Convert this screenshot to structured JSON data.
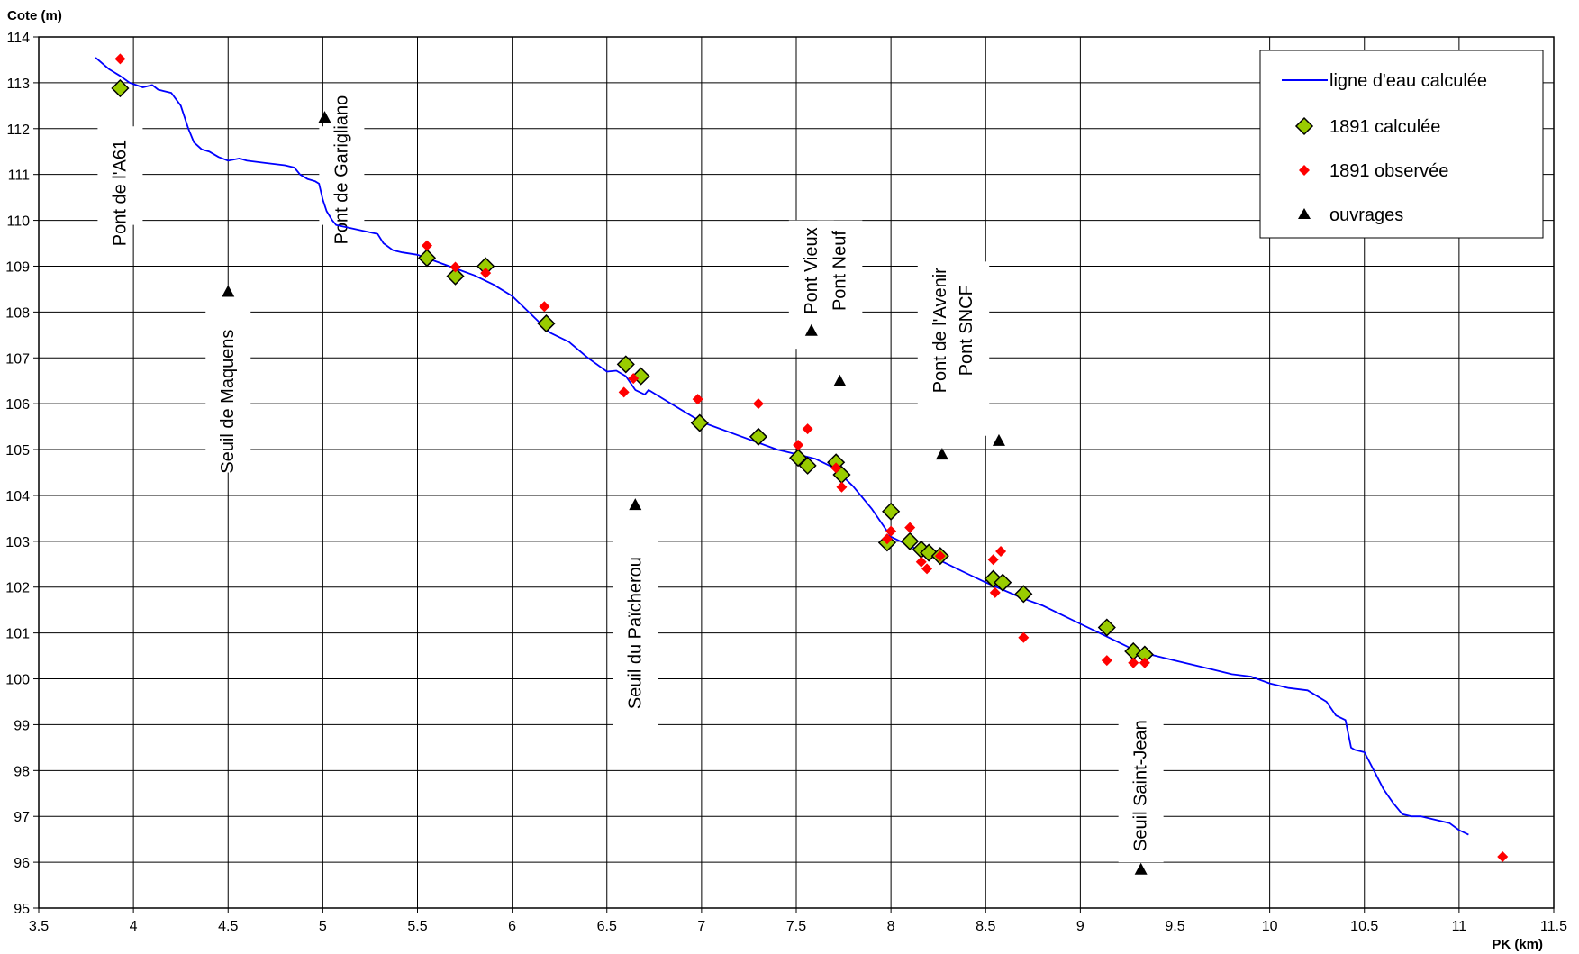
{
  "chart_data": {
    "type": "scatter",
    "xlabel": "PK (km)",
    "ylabel": "Cote (m)",
    "xlim": [
      3.5,
      11.5
    ],
    "ylim": [
      95,
      114
    ],
    "xticks": [
      3.5,
      4,
      4.5,
      5,
      5.5,
      6,
      6.5,
      7,
      7.5,
      8,
      8.5,
      9,
      9.5,
      10,
      10.5,
      11,
      11.5
    ],
    "xtick_labels": [
      "3.5",
      "4",
      "4.5",
      "5",
      "5.5",
      "6",
      "6.5",
      "7",
      "7.5",
      "8",
      "8.5",
      "9",
      "9.5",
      "10",
      "10.5",
      "11",
      "11.5"
    ],
    "yticks": [
      95,
      96,
      97,
      98,
      99,
      100,
      101,
      102,
      103,
      104,
      105,
      106,
      107,
      108,
      109,
      110,
      111,
      112,
      113,
      114
    ],
    "ytick_labels": [
      "95",
      "96",
      "97",
      "98",
      "99",
      "100",
      "101",
      "102",
      "103",
      "104",
      "105",
      "106",
      "107",
      "108",
      "109",
      "110",
      "111",
      "112",
      "113",
      "114"
    ],
    "grid": true,
    "legend_position": "top-right",
    "colors": {
      "line": "#0000ff",
      "calc_fill": "#99cc00",
      "obs": "#ff0000",
      "ouvrages": "#000000"
    },
    "series": [
      {
        "name": "ligne d'eau calculée",
        "kind": "line",
        "x": [
          3.8,
          3.87,
          3.93,
          3.98,
          4.05,
          4.1,
          4.13,
          4.16,
          4.2,
          4.25,
          4.29,
          4.32,
          4.36,
          4.4,
          4.45,
          4.5,
          4.56,
          4.6,
          4.7,
          4.8,
          4.85,
          4.88,
          4.92,
          4.96,
          4.98,
          5.0,
          5.02,
          5.05,
          5.07,
          5.29,
          5.32,
          5.37,
          5.42,
          5.5,
          5.6,
          5.7,
          5.8,
          5.9,
          6.0,
          6.1,
          6.2,
          6.3,
          6.4,
          6.5,
          6.55,
          6.6,
          6.65,
          6.7,
          6.72,
          6.8,
          7.0,
          7.2,
          7.4,
          7.5,
          7.6,
          7.7,
          7.8,
          7.9,
          8.0,
          8.2,
          8.4,
          8.5,
          8.7,
          8.8,
          8.9,
          9.0,
          9.1,
          9.2,
          9.3,
          9.4,
          9.5,
          9.6,
          9.7,
          9.8,
          9.9,
          10.0,
          10.1,
          10.2,
          10.3,
          10.35,
          10.4,
          10.43,
          10.45,
          10.5,
          10.55,
          10.6,
          10.65,
          10.7,
          10.75,
          10.8,
          10.85,
          10.9,
          10.95,
          11.0,
          11.05
        ],
        "y": [
          113.55,
          113.3,
          113.15,
          113.0,
          112.9,
          112.95,
          112.85,
          112.82,
          112.78,
          112.5,
          112.0,
          111.7,
          111.55,
          111.5,
          111.38,
          111.3,
          111.35,
          111.3,
          111.25,
          111.2,
          111.15,
          111.0,
          110.9,
          110.85,
          110.8,
          110.45,
          110.2,
          110.0,
          109.9,
          109.7,
          109.5,
          109.35,
          109.3,
          109.25,
          109.1,
          108.95,
          108.8,
          108.6,
          108.35,
          107.95,
          107.55,
          107.35,
          107.0,
          106.7,
          106.72,
          106.6,
          106.3,
          106.2,
          106.3,
          106.1,
          105.6,
          105.3,
          105.0,
          104.9,
          104.8,
          104.6,
          104.2,
          103.7,
          103.1,
          102.7,
          102.3,
          102.1,
          101.75,
          101.6,
          101.4,
          101.2,
          101.0,
          100.8,
          100.6,
          100.5,
          100.4,
          100.3,
          100.2,
          100.1,
          100.05,
          99.9,
          99.8,
          99.75,
          99.5,
          99.2,
          99.1,
          98.5,
          98.45,
          98.4,
          98.0,
          97.6,
          97.3,
          97.05,
          97.0,
          97.0,
          96.95,
          96.9,
          96.85,
          96.7,
          96.6
        ]
      },
      {
        "name": "1891 calculée",
        "kind": "diamond",
        "x": [
          3.93,
          5.55,
          5.7,
          5.86,
          6.18,
          6.6,
          6.68,
          6.99,
          7.3,
          7.51,
          7.56,
          7.71,
          7.74,
          7.98,
          8.0,
          8.1,
          8.16,
          8.2,
          8.26,
          8.54,
          8.59,
          8.7,
          9.14,
          9.28,
          9.34
        ],
        "y": [
          112.88,
          109.18,
          108.78,
          109.0,
          107.75,
          106.86,
          106.6,
          105.58,
          105.28,
          104.82,
          104.65,
          104.72,
          104.45,
          102.97,
          103.65,
          103.0,
          102.82,
          102.75,
          102.68,
          102.18,
          102.1,
          101.85,
          101.12,
          100.6,
          100.53
        ]
      },
      {
        "name": "1891 observée",
        "kind": "diamond-small",
        "x": [
          3.93,
          5.55,
          5.7,
          5.86,
          6.17,
          6.59,
          6.64,
          6.98,
          7.3,
          7.51,
          7.56,
          7.71,
          7.74,
          7.98,
          8.0,
          8.1,
          8.16,
          8.19,
          8.26,
          8.54,
          8.55,
          8.58,
          8.7,
          9.14,
          9.28,
          9.34,
          11.23
        ],
        "y": [
          113.52,
          109.45,
          108.98,
          108.85,
          108.12,
          106.25,
          106.55,
          106.1,
          106.0,
          105.1,
          105.45,
          104.6,
          104.18,
          103.05,
          103.22,
          103.3,
          102.55,
          102.4,
          102.68,
          102.6,
          101.88,
          102.78,
          100.9,
          100.4,
          100.35,
          100.35,
          96.12
        ]
      },
      {
        "name": "ouvrages",
        "kind": "triangle",
        "x": [
          5.01,
          4.5,
          6.65,
          7.58,
          7.73,
          8.27,
          8.57,
          9.32
        ],
        "y": [
          112.25,
          108.45,
          103.8,
          107.6,
          106.5,
          104.9,
          105.2,
          95.85
        ]
      }
    ],
    "annotations": [
      {
        "label": "Pont de l'A61",
        "x": 3.93,
        "y": 110.6,
        "line": [
          112.05,
          109.9
        ]
      },
      {
        "label": "Pont de Garigliano",
        "x": 5.1,
        "y": 111.1,
        "line": [
          112.05,
          109.9
        ]
      },
      {
        "label": "Seuil de Maquens",
        "x": 4.5,
        "y": 106.05,
        "line": [
          108.4,
          104.5
        ]
      },
      {
        "label": "Seuil du Païcherou",
        "x": 6.65,
        "y": 101.0,
        "line": [
          103.7,
          98.8
        ]
      },
      {
        "label": "Pont Vieux",
        "x": 7.58,
        "y": 108.9,
        "line": [
          110.0,
          107.2
        ]
      },
      {
        "label": "Pont Neuf",
        "x": 7.73,
        "y": 108.9,
        "line": [
          110.0,
          107.2
        ]
      },
      {
        "label": "Pont de l'Avenir",
        "x": 8.26,
        "y": 107.6,
        "line": [
          109.1,
          105.3
        ]
      },
      {
        "label": "Pont SNCF",
        "x": 8.4,
        "y": 107.6,
        "line": [
          109.1,
          105.3
        ]
      },
      {
        "label": "Seuil Saint-Jean",
        "x": 9.32,
        "y": 97.67,
        "line": [
          99.3,
          96.0
        ]
      }
    ]
  }
}
